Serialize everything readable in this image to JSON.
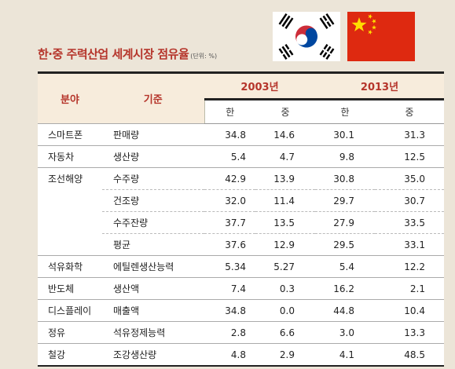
{
  "title": "한·중 주력산업 세계시장 점유율",
  "unit": "(단위: %)",
  "flags": [
    {
      "name": "south-korea-flag",
      "colors": [
        "#ffffff",
        "#cd2e3a",
        "#0047a0",
        "#000000"
      ]
    },
    {
      "name": "china-flag",
      "colors": [
        "#de2910",
        "#ffde00"
      ]
    }
  ],
  "table": {
    "headers": {
      "field": "분야",
      "basis": "기준",
      "year1": "2003년",
      "year2": "2013년",
      "korea": "한",
      "china": "중"
    },
    "rows": [
      {
        "field": "스마트폰",
        "basis": "판매량",
        "kr2003": "34.8",
        "cn2003": "14.6",
        "kr2013": "30.1",
        "cn2013": "31.3"
      },
      {
        "field": "자동차",
        "basis": "생산량",
        "kr2003": "5.4",
        "cn2003": "4.7",
        "kr2013": "9.8",
        "cn2013": "12.5"
      },
      {
        "field": "조선해양",
        "basis": "수주량",
        "kr2003": "42.9",
        "cn2003": "13.9",
        "kr2013": "30.8",
        "cn2013": "35.0"
      },
      {
        "field": "",
        "basis": "건조량",
        "kr2003": "32.0",
        "cn2003": "11.4",
        "kr2013": "29.7",
        "cn2013": "30.7"
      },
      {
        "field": "",
        "basis": "수주잔량",
        "kr2003": "37.7",
        "cn2003": "13.5",
        "kr2013": "27.9",
        "cn2013": "33.5"
      },
      {
        "field": "",
        "basis": "평균",
        "kr2003": "37.6",
        "cn2003": "12.9",
        "kr2013": "29.5",
        "cn2013": "33.1"
      },
      {
        "field": "석유화학",
        "basis": "에틸렌생산능력",
        "kr2003": "5.34",
        "cn2003": "5.27",
        "kr2013": "5.4",
        "cn2013": "12.2"
      },
      {
        "field": "반도체",
        "basis": "생산액",
        "kr2003": "7.4",
        "cn2003": "0.3",
        "kr2013": "16.2",
        "cn2013": "2.1"
      },
      {
        "field": "디스플레이",
        "basis": "매출액",
        "kr2003": "34.8",
        "cn2003": "0.0",
        "kr2013": "44.8",
        "cn2013": "10.4"
      },
      {
        "field": "정유",
        "basis": "석유정제능력",
        "kr2003": "2.8",
        "cn2003": "6.6",
        "kr2013": "3.0",
        "cn2013": "13.3"
      },
      {
        "field": "철강",
        "basis": "조강생산량",
        "kr2003": "4.8",
        "cn2003": "2.9",
        "kr2013": "4.1",
        "cn2013": "48.5"
      }
    ]
  }
}
